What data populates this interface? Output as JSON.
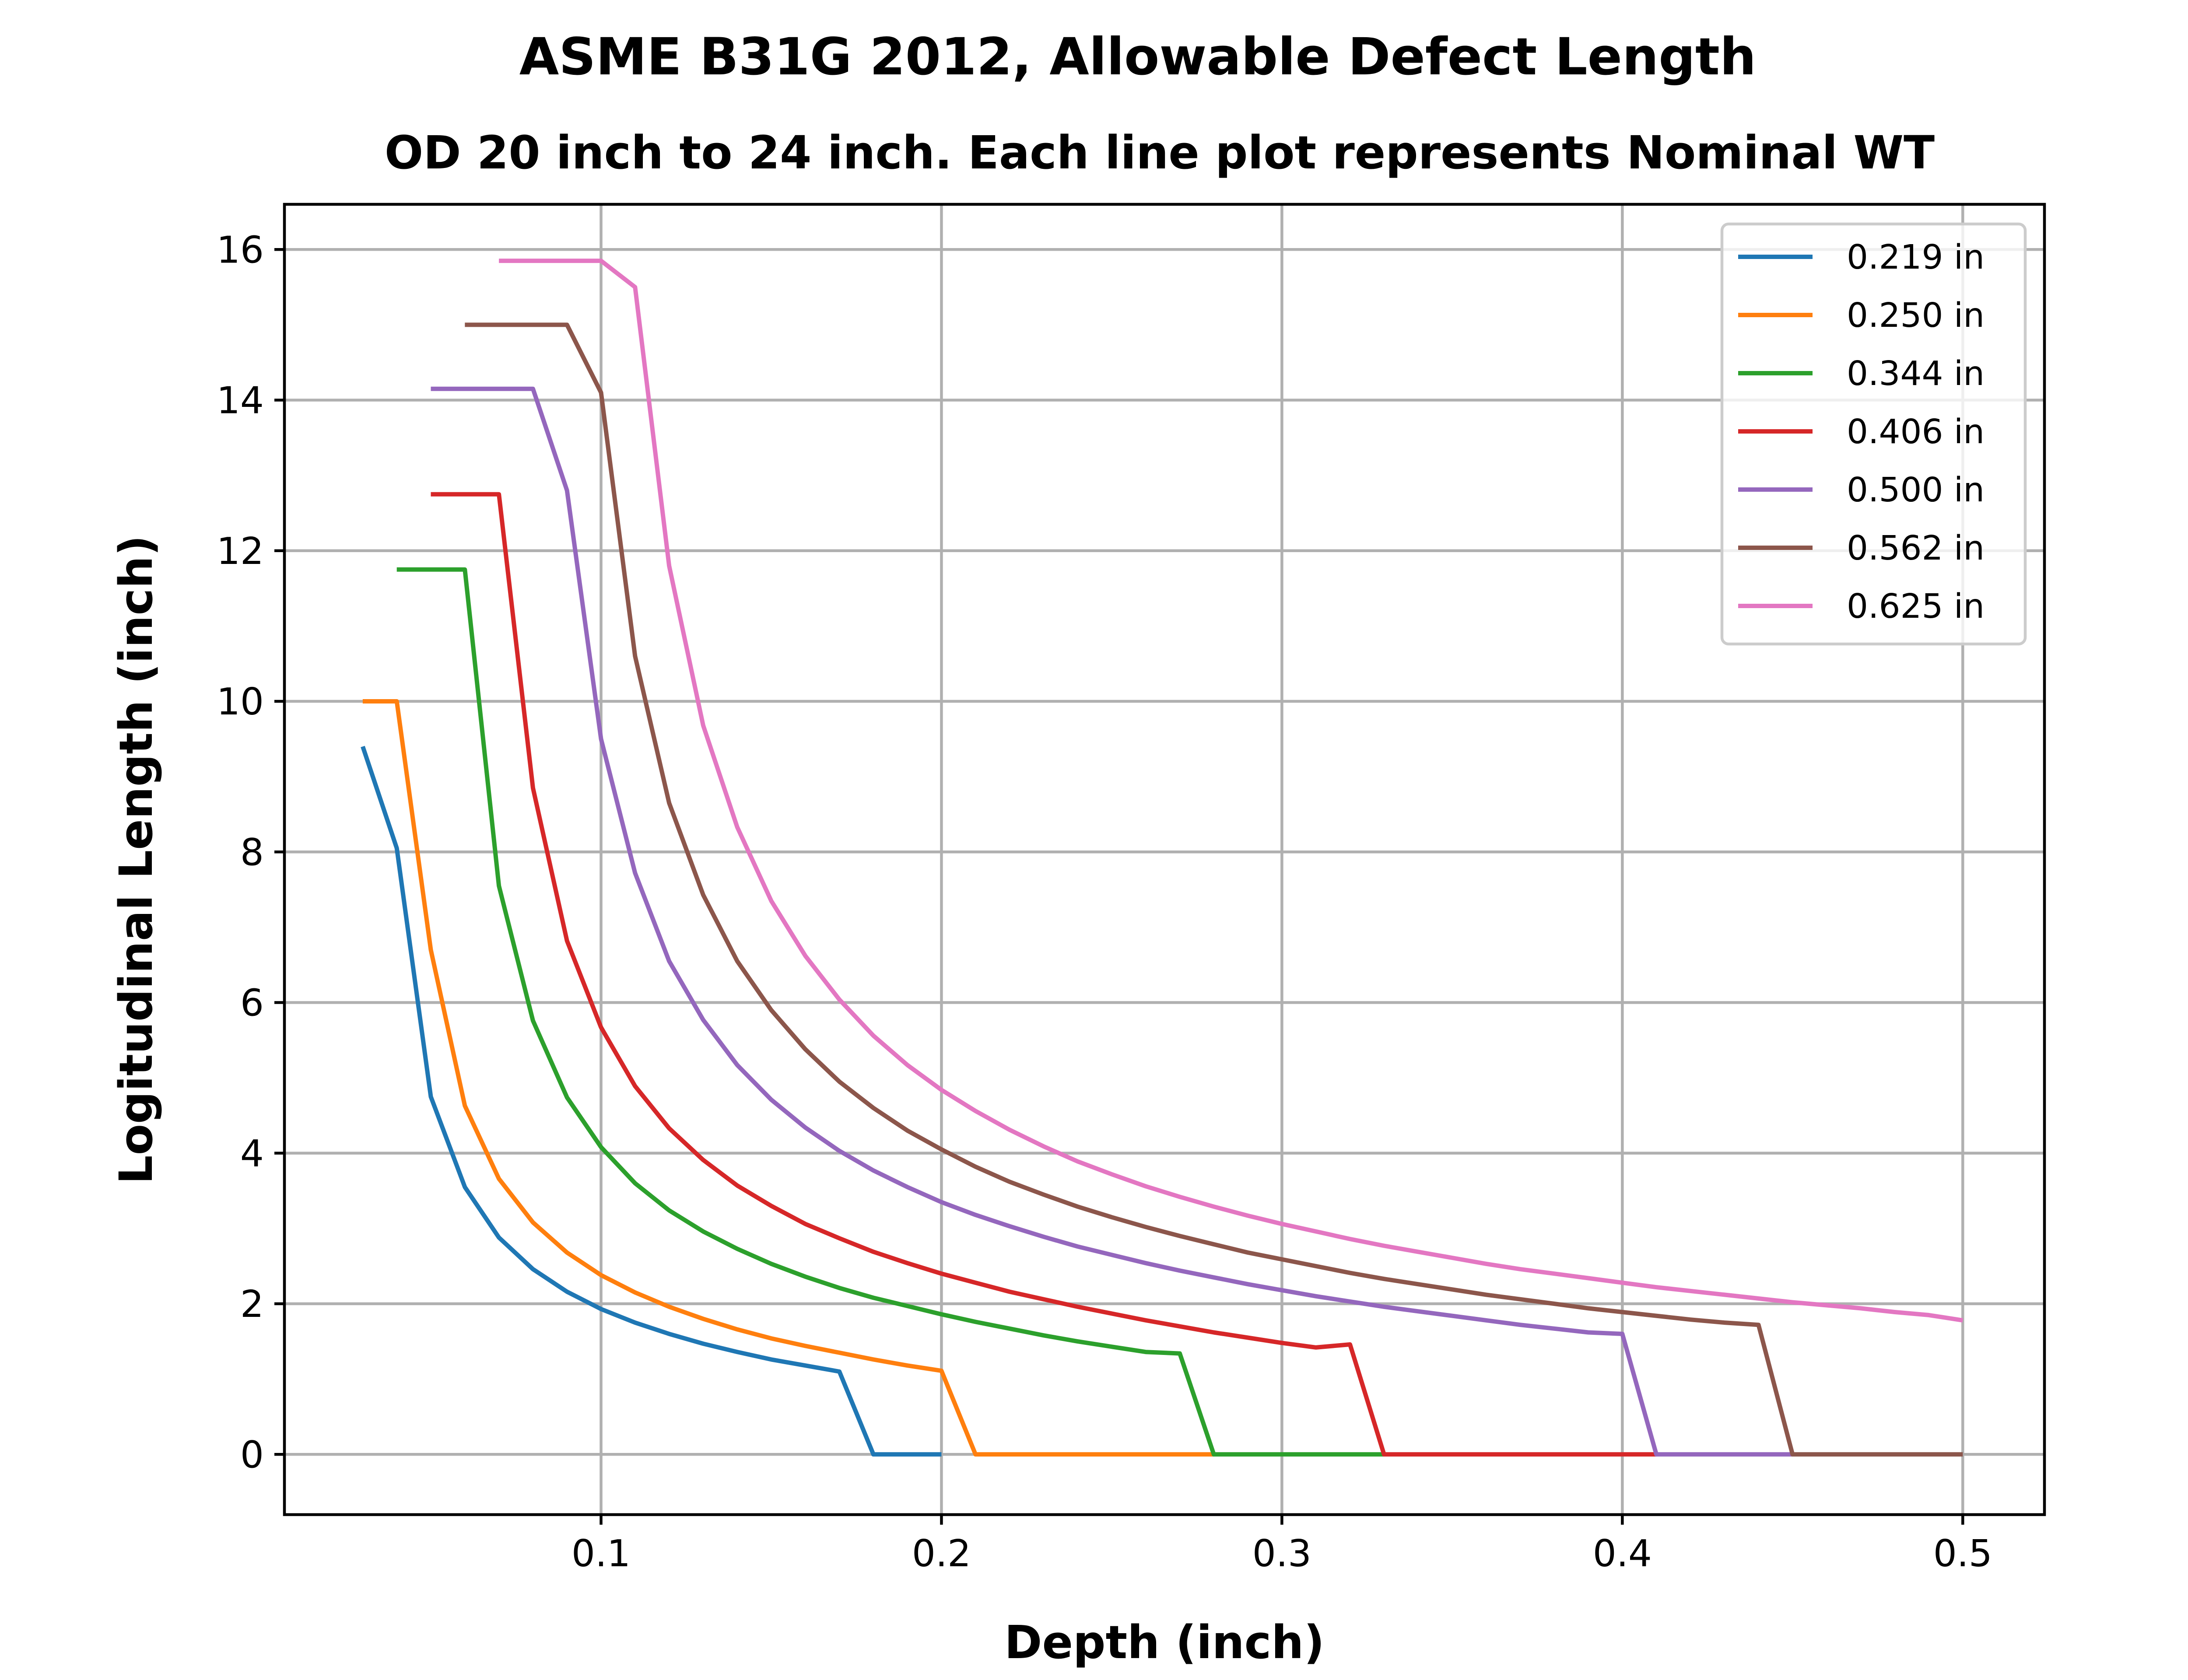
{
  "chart_data": {
    "type": "line",
    "title": "ASME B31G 2012, Allowable Defect Length",
    "subtitle": "OD 20 inch to 24 inch. Each line plot represents Nominal WT",
    "xlabel": "Depth (inch)",
    "ylabel": "Logitudinal Length (inch)",
    "xlim": [
      0.007,
      0.524
    ],
    "ylim": [
      -0.8,
      16.6
    ],
    "xticks": [
      0.1,
      0.2,
      0.3,
      0.4,
      0.5
    ],
    "xtick_labels": [
      "0.1",
      "0.2",
      "0.3",
      "0.4",
      "0.5"
    ],
    "yticks": [
      0,
      2,
      4,
      6,
      8,
      10,
      12,
      14,
      16
    ],
    "ytick_labels": [
      "0",
      "2",
      "4",
      "6",
      "8",
      "10",
      "12",
      "14",
      "16"
    ],
    "grid": true,
    "legend_position": "top-right",
    "series": [
      {
        "name": "0.219 in",
        "color": "#1f77b4",
        "x": [
          0.03,
          0.04,
          0.05,
          0.06,
          0.07,
          0.08,
          0.09,
          0.1,
          0.11,
          0.12,
          0.13,
          0.14,
          0.15,
          0.16,
          0.17,
          0.18,
          0.19,
          0.2
        ],
        "y": [
          9.4,
          8.05,
          4.75,
          3.55,
          2.88,
          2.46,
          2.16,
          1.93,
          1.75,
          1.6,
          1.47,
          1.36,
          1.26,
          1.18,
          1.1,
          0,
          0,
          0
        ]
      },
      {
        "name": "0.250 in",
        "color": "#ff7f0e",
        "x": [
          0.03,
          0.04,
          0.05,
          0.06,
          0.07,
          0.08,
          0.09,
          0.1,
          0.11,
          0.12,
          0.13,
          0.14,
          0.15,
          0.16,
          0.17,
          0.18,
          0.19,
          0.2,
          0.21,
          0.22,
          0.23,
          0.24,
          0.25,
          0.26,
          0.27,
          0.28
        ],
        "y": [
          10.0,
          10.0,
          6.7,
          4.63,
          3.66,
          3.08,
          2.68,
          2.38,
          2.15,
          1.96,
          1.8,
          1.66,
          1.54,
          1.44,
          1.35,
          1.26,
          1.18,
          1.11,
          0,
          0,
          0,
          0,
          0,
          0,
          0,
          0
        ]
      },
      {
        "name": "0.344 in",
        "color": "#2ca02c",
        "x": [
          0.04,
          0.05,
          0.06,
          0.07,
          0.08,
          0.09,
          0.1,
          0.11,
          0.12,
          0.13,
          0.14,
          0.15,
          0.16,
          0.17,
          0.18,
          0.19,
          0.2,
          0.21,
          0.22,
          0.23,
          0.24,
          0.25,
          0.26,
          0.27,
          0.28,
          0.29,
          0.3,
          0.31,
          0.32,
          0.33
        ],
        "y": [
          11.75,
          11.75,
          11.75,
          7.55,
          5.76,
          4.74,
          4.08,
          3.6,
          3.24,
          2.96,
          2.73,
          2.53,
          2.36,
          2.21,
          2.08,
          1.97,
          1.86,
          1.76,
          1.67,
          1.58,
          1.5,
          1.43,
          1.36,
          1.34,
          0,
          0,
          0,
          0,
          0,
          0
        ]
      },
      {
        "name": "0.406 in",
        "color": "#d62728",
        "x": [
          0.05,
          0.06,
          0.07,
          0.08,
          0.09,
          0.1,
          0.11,
          0.12,
          0.13,
          0.14,
          0.15,
          0.16,
          0.17,
          0.18,
          0.19,
          0.2,
          0.21,
          0.22,
          0.23,
          0.24,
          0.25,
          0.26,
          0.27,
          0.28,
          0.29,
          0.3,
          0.31,
          0.32,
          0.33,
          0.34,
          0.35,
          0.36,
          0.37,
          0.38,
          0.39,
          0.4,
          0.41
        ],
        "y": [
          12.75,
          12.75,
          12.75,
          8.85,
          6.82,
          5.67,
          4.89,
          4.33,
          3.91,
          3.57,
          3.3,
          3.06,
          2.87,
          2.69,
          2.54,
          2.4,
          2.28,
          2.16,
          2.06,
          1.96,
          1.87,
          1.78,
          1.7,
          1.62,
          1.55,
          1.48,
          1.42,
          1.46,
          0,
          0,
          0,
          0,
          0,
          0,
          0,
          0,
          0
        ]
      },
      {
        "name": "0.500 in",
        "color": "#9467bd",
        "x": [
          0.05,
          0.06,
          0.07,
          0.08,
          0.09,
          0.1,
          0.11,
          0.12,
          0.13,
          0.14,
          0.15,
          0.16,
          0.17,
          0.18,
          0.19,
          0.2,
          0.21,
          0.22,
          0.23,
          0.24,
          0.25,
          0.26,
          0.27,
          0.28,
          0.29,
          0.3,
          0.31,
          0.32,
          0.33,
          0.34,
          0.35,
          0.36,
          0.37,
          0.38,
          0.39,
          0.4,
          0.41,
          0.42,
          0.43,
          0.44,
          0.45
        ],
        "y": [
          14.15,
          14.15,
          14.15,
          14.15,
          12.8,
          9.5,
          7.72,
          6.55,
          5.77,
          5.17,
          4.71,
          4.34,
          4.03,
          3.77,
          3.55,
          3.35,
          3.18,
          3.03,
          2.89,
          2.76,
          2.65,
          2.54,
          2.44,
          2.35,
          2.26,
          2.18,
          2.1,
          2.03,
          1.96,
          1.9,
          1.84,
          1.78,
          1.72,
          1.67,
          1.62,
          1.6,
          0,
          0,
          0,
          0,
          0
        ]
      },
      {
        "name": "0.562 in",
        "color": "#8c564b",
        "x": [
          0.06,
          0.07,
          0.08,
          0.09,
          0.1,
          0.11,
          0.12,
          0.13,
          0.14,
          0.15,
          0.16,
          0.17,
          0.18,
          0.19,
          0.2,
          0.21,
          0.22,
          0.23,
          0.24,
          0.25,
          0.26,
          0.27,
          0.28,
          0.29,
          0.3,
          0.31,
          0.32,
          0.33,
          0.34,
          0.35,
          0.36,
          0.37,
          0.38,
          0.39,
          0.4,
          0.41,
          0.42,
          0.43,
          0.44,
          0.45,
          0.46,
          0.47,
          0.48,
          0.49,
          0.5
        ],
        "y": [
          15.0,
          15.0,
          15.0,
          15.0,
          14.1,
          10.6,
          8.65,
          7.43,
          6.55,
          5.9,
          5.38,
          4.95,
          4.6,
          4.3,
          4.05,
          3.82,
          3.62,
          3.45,
          3.29,
          3.15,
          3.02,
          2.9,
          2.79,
          2.68,
          2.59,
          2.5,
          2.41,
          2.33,
          2.26,
          2.19,
          2.12,
          2.06,
          2.0,
          1.94,
          1.89,
          1.84,
          1.79,
          1.75,
          1.72,
          0,
          0,
          0,
          0,
          0,
          0
        ]
      },
      {
        "name": "0.625 in",
        "color": "#e377c2",
        "x": [
          0.07,
          0.08,
          0.09,
          0.1,
          0.11,
          0.12,
          0.13,
          0.14,
          0.15,
          0.16,
          0.17,
          0.18,
          0.19,
          0.2,
          0.21,
          0.22,
          0.23,
          0.24,
          0.25,
          0.26,
          0.27,
          0.28,
          0.29,
          0.3,
          0.31,
          0.32,
          0.33,
          0.34,
          0.35,
          0.36,
          0.37,
          0.38,
          0.39,
          0.4,
          0.41,
          0.42,
          0.43,
          0.44,
          0.45,
          0.46,
          0.47,
          0.48,
          0.49,
          0.5
        ],
        "y": [
          15.85,
          15.85,
          15.85,
          15.85,
          15.5,
          11.8,
          9.68,
          8.33,
          7.35,
          6.62,
          6.04,
          5.56,
          5.17,
          4.84,
          4.56,
          4.31,
          4.09,
          3.89,
          3.72,
          3.56,
          3.42,
          3.29,
          3.17,
          3.06,
          2.96,
          2.86,
          2.77,
          2.69,
          2.61,
          2.53,
          2.46,
          2.4,
          2.34,
          2.28,
          2.22,
          2.17,
          2.12,
          2.07,
          2.02,
          1.98,
          1.94,
          1.89,
          1.85,
          1.78
        ]
      }
    ]
  }
}
